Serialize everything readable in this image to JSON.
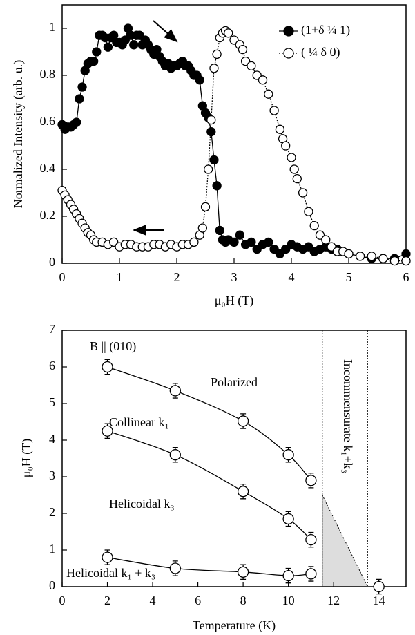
{
  "chart_data": [
    {
      "type": "scatter",
      "xlabel": "μ₀H (T)",
      "ylabel": "Normalized Intensity (arb. u.)",
      "xlim": [
        0,
        6
      ],
      "ylim": [
        0,
        1.1
      ],
      "xticks": [
        0,
        1,
        2,
        3,
        4,
        5,
        6
      ],
      "yticks": [
        0,
        0.2,
        0.4,
        0.6,
        0.8,
        1
      ],
      "legend": "upper right",
      "smooth": false,
      "series": [
        {
          "name": "(1+δ ¼  1)",
          "color": "#000000",
          "marker": "filled",
          "line": "solid",
          "x": [
            0,
            0.05,
            0.1,
            0.15,
            0.2,
            0.25,
            0.3,
            0.35,
            0.4,
            0.45,
            0.5,
            0.55,
            0.6,
            0.65,
            0.7,
            0.75,
            0.8,
            0.85,
            0.9,
            0.95,
            1.0,
            1.05,
            1.1,
            1.15,
            1.2,
            1.25,
            1.3,
            1.35,
            1.4,
            1.45,
            1.5,
            1.55,
            1.6,
            1.65,
            1.7,
            1.75,
            1.8,
            1.85,
            1.9,
            1.95,
            2.0,
            2.05,
            2.1,
            2.15,
            2.2,
            2.25,
            2.3,
            2.35,
            2.4,
            2.45,
            2.5,
            2.55,
            2.6,
            2.65,
            2.7,
            2.75,
            2.8,
            2.85,
            2.9,
            3.0,
            3.1,
            3.2,
            3.3,
            3.4,
            3.5,
            3.6,
            3.7,
            3.8,
            3.9,
            4.0,
            4.1,
            4.2,
            4.3,
            4.4,
            4.5,
            4.6,
            4.7,
            4.8,
            4.9,
            5.0,
            5.2,
            5.4,
            5.6,
            5.8,
            6.0
          ],
          "values": [
            0.59,
            0.57,
            0.58,
            0.58,
            0.59,
            0.6,
            0.7,
            0.75,
            0.82,
            0.85,
            0.86,
            0.86,
            0.9,
            0.97,
            0.97,
            0.96,
            0.92,
            0.96,
            0.97,
            0.94,
            0.94,
            0.93,
            0.95,
            1.0,
            0.97,
            0.93,
            0.97,
            0.97,
            0.93,
            0.95,
            0.93,
            0.91,
            0.89,
            0.91,
            0.88,
            0.86,
            0.84,
            0.85,
            0.83,
            0.84,
            0.84,
            0.85,
            0.86,
            0.84,
            0.84,
            0.82,
            0.8,
            0.8,
            0.78,
            0.67,
            0.64,
            0.62,
            0.56,
            0.44,
            0.33,
            0.14,
            0.1,
            0.09,
            0.1,
            0.09,
            0.12,
            0.08,
            0.09,
            0.06,
            0.08,
            0.09,
            0.06,
            0.04,
            0.06,
            0.08,
            0.07,
            0.06,
            0.07,
            0.05,
            0.06,
            0.07,
            0.06,
            0.06,
            0.05,
            0.04,
            0.03,
            0.02,
            0.02,
            0.02,
            0.04
          ]
        },
        {
          "name": "( ¼ δ 0)",
          "color": "#000000",
          "marker": "open",
          "line": "dotted",
          "x": [
            0,
            0.05,
            0.1,
            0.15,
            0.2,
            0.25,
            0.3,
            0.35,
            0.4,
            0.45,
            0.5,
            0.55,
            0.6,
            0.7,
            0.8,
            0.9,
            1.0,
            1.1,
            1.2,
            1.3,
            1.4,
            1.5,
            1.6,
            1.7,
            1.8,
            1.9,
            2.0,
            2.1,
            2.2,
            2.3,
            2.4,
            2.45,
            2.5,
            2.55,
            2.6,
            2.65,
            2.7,
            2.75,
            2.8,
            2.85,
            2.9,
            3.0,
            3.1,
            3.15,
            3.2,
            3.3,
            3.4,
            3.5,
            3.6,
            3.7,
            3.8,
            3.85,
            3.9,
            4.0,
            4.05,
            4.1,
            4.2,
            4.3,
            4.4,
            4.5,
            4.6,
            4.7,
            4.8,
            4.9,
            5.0,
            5.2,
            5.4,
            5.6,
            5.8,
            6.0
          ],
          "values": [
            0.31,
            0.29,
            0.27,
            0.25,
            0.23,
            0.21,
            0.19,
            0.17,
            0.15,
            0.13,
            0.12,
            0.1,
            0.09,
            0.09,
            0.08,
            0.09,
            0.07,
            0.08,
            0.08,
            0.07,
            0.07,
            0.07,
            0.08,
            0.08,
            0.07,
            0.08,
            0.07,
            0.08,
            0.08,
            0.09,
            0.12,
            0.15,
            0.24,
            0.4,
            0.61,
            0.83,
            0.89,
            0.96,
            0.98,
            0.99,
            0.98,
            0.95,
            0.93,
            0.91,
            0.86,
            0.84,
            0.8,
            0.78,
            0.72,
            0.65,
            0.57,
            0.53,
            0.5,
            0.45,
            0.4,
            0.36,
            0.3,
            0.22,
            0.16,
            0.12,
            0.1,
            0.07,
            0.05,
            0.05,
            0.04,
            0.03,
            0.03,
            0.02,
            0.01,
            0.01
          ]
        }
      ]
    },
    {
      "type": "scatter",
      "xlabel": "Temperature (K)",
      "ylabel": "μ₀H (T)",
      "xlim": [
        0,
        15.2
      ],
      "ylim": [
        0,
        7
      ],
      "xticks": [
        0,
        2,
        4,
        6,
        8,
        10,
        12,
        14
      ],
      "yticks": [
        0,
        1,
        2,
        3,
        4,
        5,
        6,
        7
      ],
      "smooth": true,
      "vlines": [
        11.5,
        13.5
      ],
      "shaded": {
        "x": [
          11.5,
          13.5,
          11.5
        ],
        "y": [
          2.5,
          0,
          0
        ],
        "color": "#dddddd"
      },
      "annotations": [
        "B || (010)",
        "Polarized",
        "Collinear k₁",
        "Helicoidal k₃",
        "Helicoidal k₁ + k₃",
        "Incommensurate k₁+k₃"
      ],
      "series": [
        {
          "color": "#000000",
          "marker": "open",
          "line": "solid",
          "x": [
            2,
            5,
            8,
            10,
            11
          ],
          "values": [
            6.0,
            5.35,
            4.52,
            3.6,
            2.9
          ],
          "errors": [
            0.2,
            0.2,
            0.2,
            0.2,
            0.2
          ]
        },
        {
          "color": "#000000",
          "marker": "open",
          "line": "solid",
          "x": [
            2,
            5,
            8,
            10,
            11
          ],
          "values": [
            4.25,
            3.6,
            2.6,
            1.85,
            1.28
          ],
          "errors": [
            0.2,
            0.2,
            0.2,
            0.2,
            0.2
          ]
        },
        {
          "color": "#000000",
          "marker": "open",
          "line": "solid",
          "x": [
            2,
            5,
            8,
            10,
            11
          ],
          "values": [
            0.8,
            0.5,
            0.4,
            0.3,
            0.35
          ],
          "errors": [
            0.2,
            0.2,
            0.2,
            0.2,
            0.2
          ]
        },
        {
          "color": "#000000",
          "marker": "open",
          "line": "none",
          "x": [
            14
          ],
          "values": [
            0
          ],
          "errors": [
            0.2
          ]
        }
      ]
    }
  ]
}
